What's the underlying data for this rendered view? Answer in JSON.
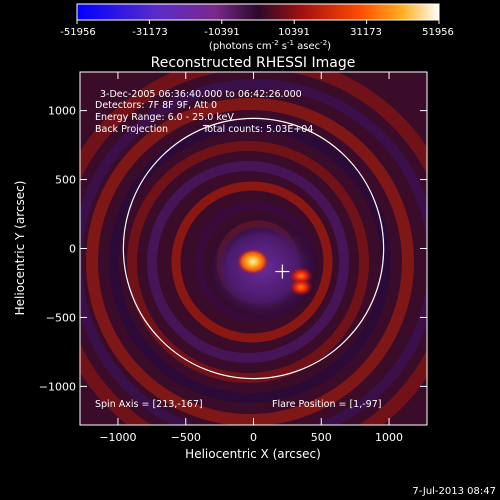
{
  "colorbar": {
    "ticks": [
      "-51956",
      "-31173",
      "-10391",
      "10391",
      "31173",
      "51956"
    ],
    "tick_values": [
      -51956,
      -31173,
      -10391,
      10391,
      31173,
      51956
    ],
    "range": [
      -51956,
      51956
    ],
    "unit_text": "(photons cm",
    "unit_exp1": "-2",
    "unit_mid": " s",
    "unit_exp2": "-1",
    "unit_end": " asec",
    "unit_exp3": "-2",
    "unit_close": ")",
    "colors": [
      "#0000ff",
      "#5a2cc8",
      "#7a2a8c",
      "#3a0f3a",
      "#a01010",
      "#ff4a00",
      "#ffb020",
      "#ffffff"
    ]
  },
  "header": {
    "line1": "3-Dec-2005 06:36:40.000 to 06:42:26.000",
    "line2": "Detectors: 7F 8F 9F, Att 0",
    "line3": "Energy Range: 6.0 - 25.0 keV",
    "line4a": "Back Projection",
    "line4b": "Total counts: 5.03E+04"
  },
  "footer": {
    "spin_axis": "Spin Axis = [213,-167]",
    "flare_position": "Flare Position = [1,-97]",
    "timestamp": "7-Jul-2013 08:47"
  },
  "chart_data": {
    "type": "heatmap",
    "title": "Reconstructed RHESSI Image",
    "xlabel": "Heliocentric X (arcsec)",
    "ylabel": "Heliocentric Y (arcsec)",
    "xlim": [
      -1280,
      1280
    ],
    "ylim": [
      -1280,
      1280
    ],
    "x_ticks": [
      -1000,
      -500,
      0,
      500,
      1000
    ],
    "y_ticks": [
      -1000,
      -500,
      0,
      500,
      1000
    ],
    "x_tick_labels": [
      "−1000",
      "−500",
      "0",
      "500",
      "1000"
    ],
    "y_tick_labels": [
      "−1000",
      "−500",
      "0",
      "500",
      "1000"
    ],
    "solar_limb_radius_arcsec": 960,
    "flare_position": [
      1,
      -97
    ],
    "spin_axis": [
      213,
      -167
    ],
    "bright_sources": [
      {
        "x": -5,
        "y": -95,
        "level": "peak"
      },
      {
        "x": 350,
        "y": -200,
        "level": "high"
      },
      {
        "x": 350,
        "y": -280,
        "level": "high"
      }
    ]
  }
}
